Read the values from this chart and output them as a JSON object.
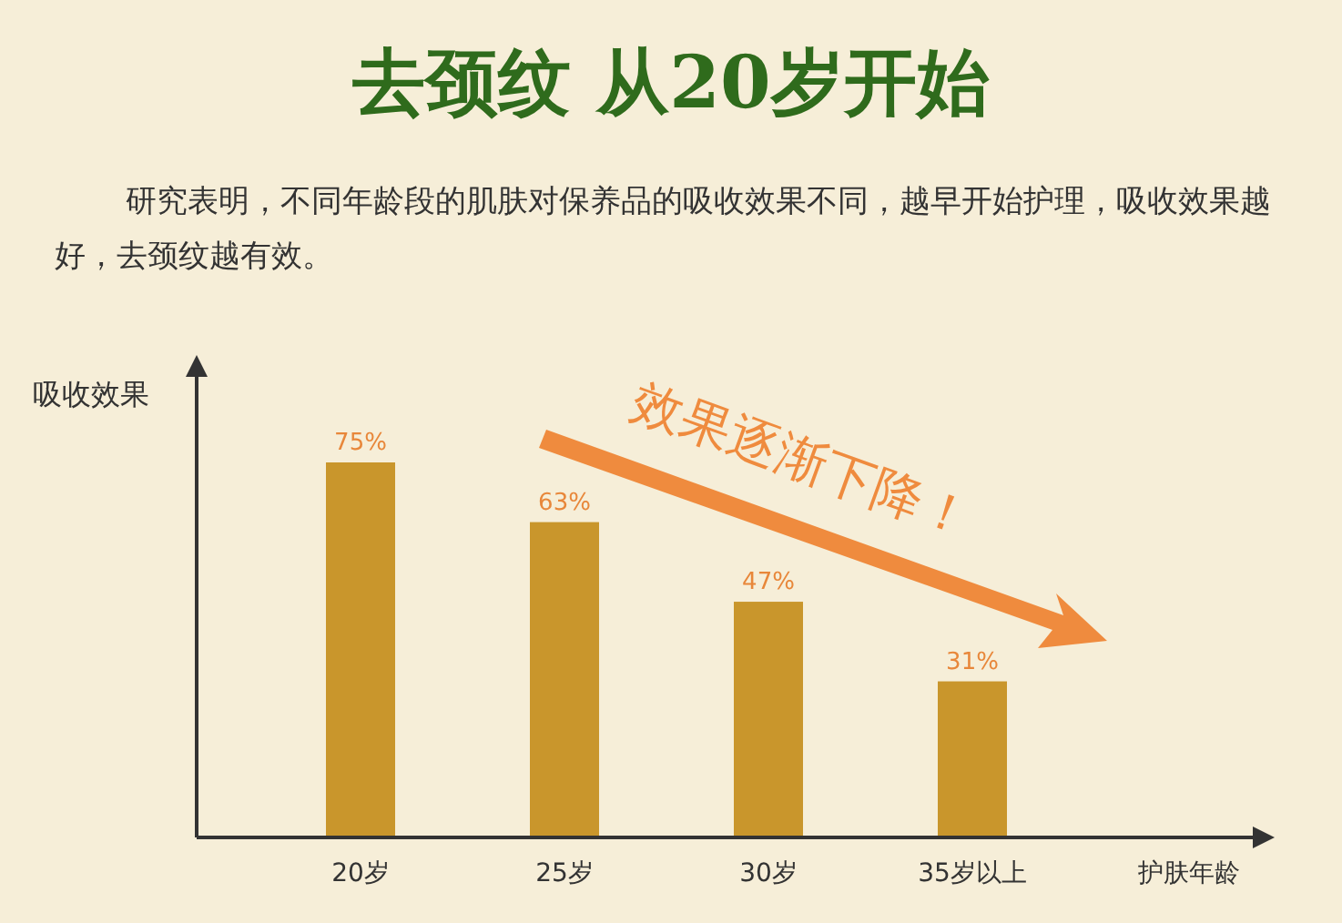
{
  "chart_data": {
    "type": "bar",
    "title": "去颈纹 从20岁开始",
    "subtitle": "研究表明，不同年龄段的肌肤对保养品的吸收效果不同，越早开始护理，吸收效果越好，去颈纹越有效。",
    "ylabel": "吸收效果",
    "xlabel": "护肤年龄",
    "categories": [
      "20岁",
      "25岁",
      "30岁",
      "35岁以上"
    ],
    "values": [
      75,
      63,
      47,
      31
    ],
    "color": "#c9962c",
    "value_labels": [
      "75%",
      "63%",
      "47%",
      "31%"
    ],
    "annotations": [
      "效果逐渐下降！"
    ]
  }
}
